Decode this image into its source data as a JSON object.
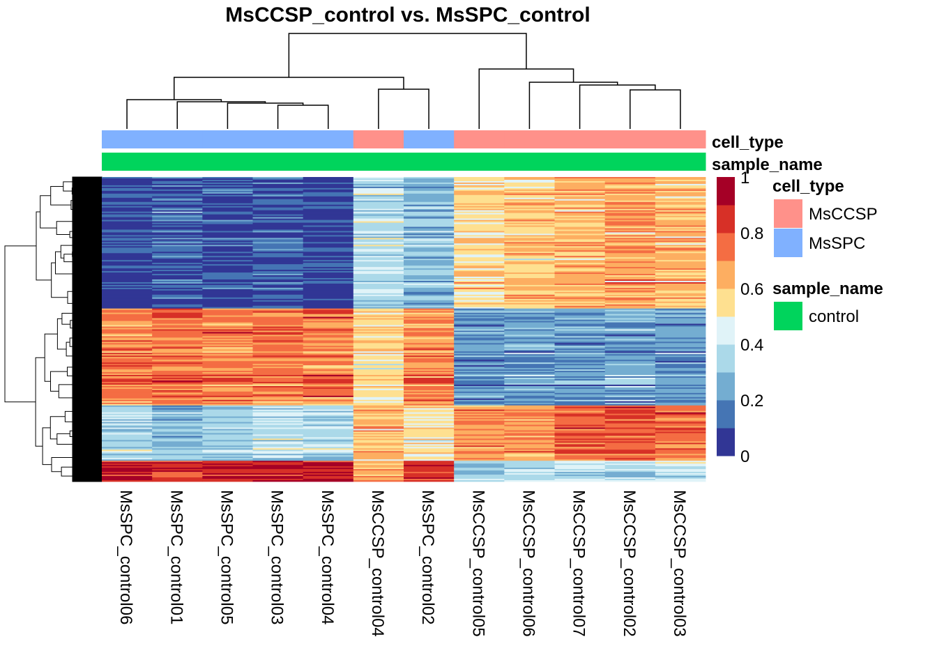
{
  "chart_data": {
    "type": "heatmap",
    "title": "MsCCSP_control vs. MsSPC_control",
    "columns": [
      {
        "name": "MsSPC_control06",
        "cell_type": "MsSPC",
        "sample_name": "control"
      },
      {
        "name": "MsSPC_control01",
        "cell_type": "MsSPC",
        "sample_name": "control"
      },
      {
        "name": "MsSPC_control05",
        "cell_type": "MsSPC",
        "sample_name": "control"
      },
      {
        "name": "MsSPC_control03",
        "cell_type": "MsSPC",
        "sample_name": "control"
      },
      {
        "name": "MsSPC_control04",
        "cell_type": "MsSPC",
        "sample_name": "control"
      },
      {
        "name": "MsCCSP_control04",
        "cell_type": "MsCCSP",
        "sample_name": "control"
      },
      {
        "name": "MsSPC_control02",
        "cell_type": "MsSPC",
        "sample_name": "control"
      },
      {
        "name": "MsCCSP_control05",
        "cell_type": "MsCCSP",
        "sample_name": "control"
      },
      {
        "name": "MsCCSP_control06",
        "cell_type": "MsCCSP",
        "sample_name": "control"
      },
      {
        "name": "MsCCSP_control07",
        "cell_type": "MsCCSP",
        "sample_name": "control"
      },
      {
        "name": "MsCCSP_control02",
        "cell_type": "MsCCSP",
        "sample_name": "control"
      },
      {
        "name": "MsCCSP_control03",
        "cell_type": "MsCCSP",
        "sample_name": "control"
      }
    ],
    "row_blocks": [
      {
        "fraction": 0.43,
        "means": [
          0.08,
          0.12,
          0.08,
          0.09,
          0.07,
          0.38,
          0.3,
          0.55,
          0.6,
          0.62,
          0.68,
          0.62
        ]
      },
      {
        "fraction": 0.32,
        "means": [
          0.72,
          0.75,
          0.72,
          0.74,
          0.73,
          0.55,
          0.7,
          0.22,
          0.24,
          0.22,
          0.25,
          0.22
        ]
      },
      {
        "fraction": 0.18,
        "means": [
          0.38,
          0.3,
          0.36,
          0.4,
          0.38,
          0.62,
          0.52,
          0.7,
          0.68,
          0.78,
          0.8,
          0.75
        ]
      },
      {
        "fraction": 0.07,
        "means": [
          0.88,
          0.85,
          0.88,
          0.9,
          0.86,
          0.65,
          0.85,
          0.3,
          0.38,
          0.4,
          0.35,
          0.4
        ]
      }
    ],
    "value_range": [
      0,
      1
    ],
    "color_scale": [
      "#313695",
      "#4575b4",
      "#74add1",
      "#abd9e9",
      "#e0f3f8",
      "#fee090",
      "#fdae61",
      "#f46d43",
      "#d73027",
      "#a50026"
    ],
    "colorbar_ticks": [
      "0",
      "0.2",
      "0.4",
      "0.6",
      "0.8",
      "1"
    ],
    "column_annotations": [
      "cell_type",
      "sample_name"
    ],
    "legend": [
      {
        "title": "cell_type",
        "items": [
          {
            "label": "MsCCSP",
            "color": "#ff918a"
          },
          {
            "label": "MsSPC",
            "color": "#80b1ff"
          }
        ]
      },
      {
        "title": "sample_name",
        "items": [
          {
            "label": "control",
            "color": "#00d45c"
          }
        ]
      }
    ],
    "column_dendrogram": true,
    "row_dendrogram": true
  }
}
